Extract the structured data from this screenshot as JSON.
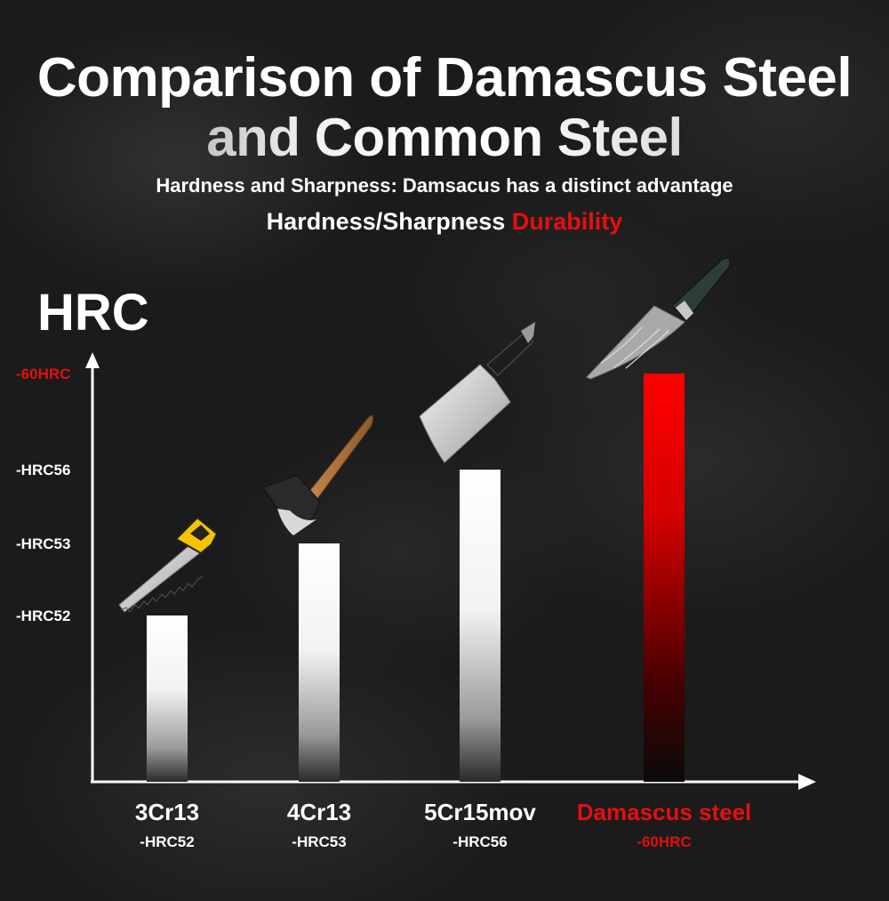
{
  "header": {
    "title_line1": "Comparison of Damascus Steel",
    "title_line2": "and Common Steel",
    "subtitle": "Hardness and Sharpness: Damsacus has a distinct advantage",
    "tagline_white": "Hardness/Sharpness ",
    "tagline_red": "Durability"
  },
  "colors": {
    "accent_red": "#e50f0f",
    "bar_white": "#ffffff",
    "background": "#1b1b1b"
  },
  "chart_data": {
    "type": "bar",
    "ylabel": "HRC",
    "categories": [
      "3Cr13",
      "4Cr13",
      "5Cr15mov",
      "Damascus steel"
    ],
    "category_sublabels": [
      "-HRC52",
      "-HRC53",
      "-HRC56",
      "-60HRC"
    ],
    "values": [
      52,
      53,
      56,
      60
    ],
    "y_ticks": [
      {
        "value": 52,
        "label": "-HRC52"
      },
      {
        "value": 53,
        "label": "-HRC53"
      },
      {
        "value": 56,
        "label": "-HRC56"
      },
      {
        "value": 60,
        "label": "-60HRC"
      }
    ],
    "highlight_category": "Damascus steel",
    "bar_icons": [
      "hand-saw-icon",
      "axe-icon",
      "cleaver-knife-icon",
      "damascus-santoku-knife-icon"
    ]
  }
}
